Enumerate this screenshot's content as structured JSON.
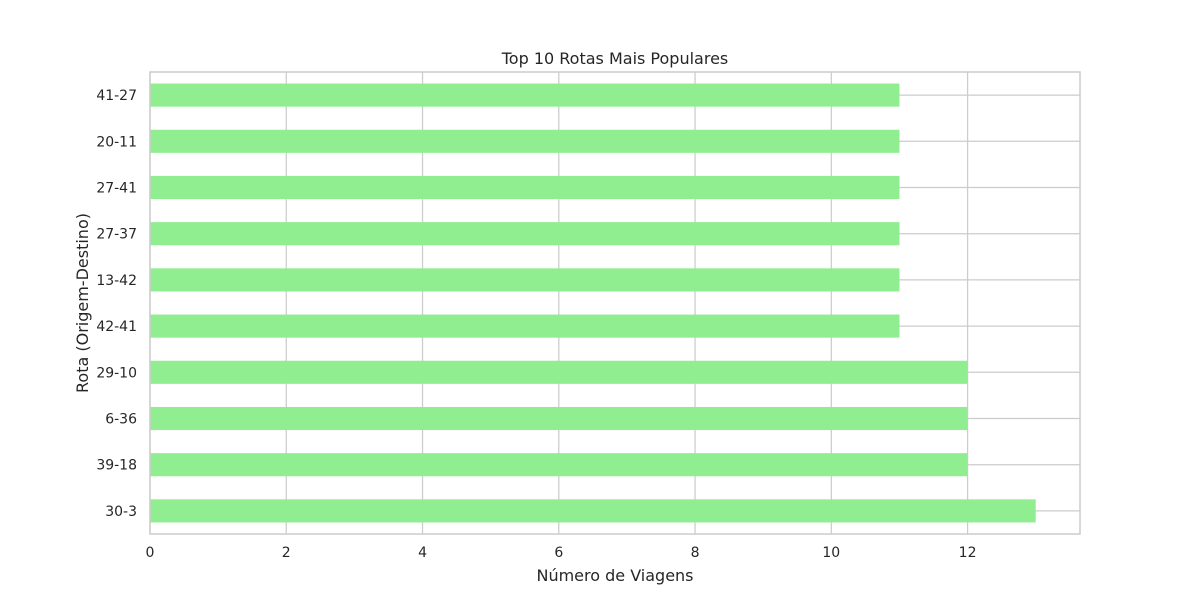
{
  "chart_data": {
    "type": "bar",
    "orientation": "horizontal",
    "title": "Top 10 Rotas Mais Populares",
    "xlabel": "Número de Viagens",
    "ylabel": "Rota (Origem-Destino)",
    "categories": [
      "30-3",
      "39-18",
      "6-36",
      "29-10",
      "42-41",
      "13-42",
      "27-37",
      "27-41",
      "20-11",
      "41-27"
    ],
    "values": [
      13,
      12,
      12,
      12,
      11,
      11,
      11,
      11,
      11,
      11
    ],
    "xlim": [
      0,
      13.65
    ],
    "xticks": [
      0,
      2,
      4,
      6,
      8,
      10,
      12
    ],
    "grid": true,
    "bar_color": "#90ee90",
    "grid_color": "#cccccc",
    "axes_color": "#cccccc",
    "text_color": "#262626"
  }
}
